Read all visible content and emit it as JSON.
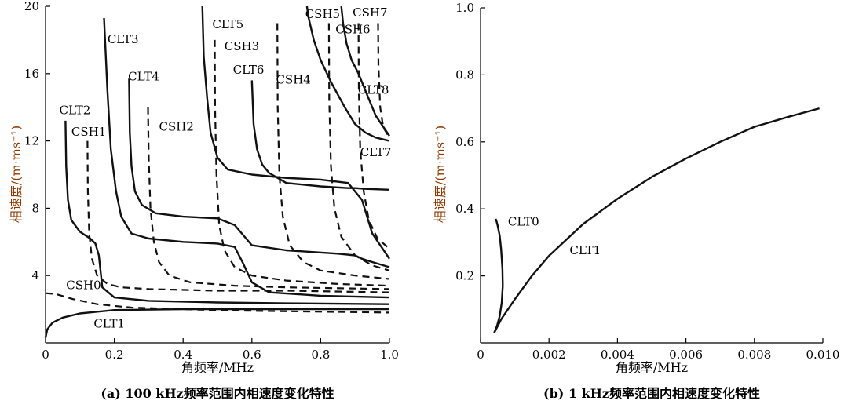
{
  "chart_data": [
    {
      "type": "line",
      "caption": "(a) 100 kHz频率范围内相速度变化特性",
      "xlabel": "角频率/MHz",
      "ylabel": "相速度/(m·ms⁻¹)",
      "xlim": [
        0,
        1.0
      ],
      "ylim": [
        0,
        20
      ],
      "xticks": [
        "0",
        "0.2",
        "0.4",
        "0.6",
        "0.8",
        "1.0"
      ],
      "yticks": [
        "4",
        "8",
        "12",
        "16",
        "20"
      ],
      "series": [
        {
          "name": "CLT1",
          "style": "solid",
          "label_at": [
            0.14,
            0.9
          ],
          "x": [
            0.0,
            0.005,
            0.02,
            0.05,
            0.1,
            0.2,
            0.4,
            0.7,
            1.0
          ],
          "y": [
            0.3,
            0.8,
            1.2,
            1.5,
            1.75,
            1.95,
            2.0,
            2.0,
            2.0
          ]
        },
        {
          "name": "CSH0",
          "style": "dashed",
          "label_at": [
            0.06,
            3.2
          ],
          "x": [
            0.0,
            0.03,
            0.08,
            0.15,
            0.25,
            0.4,
            0.6,
            0.8,
            1.0
          ],
          "y": [
            2.95,
            2.9,
            2.6,
            2.3,
            2.1,
            2.0,
            1.9,
            1.85,
            1.8
          ]
        },
        {
          "name": "CLT2",
          "style": "solid",
          "label_at": [
            0.04,
            13.6
          ],
          "x": [
            0.058,
            0.06,
            0.065,
            0.075,
            0.1,
            0.13,
            0.145,
            0.155,
            0.165,
            0.2,
            0.3,
            0.5,
            0.7,
            1.0
          ],
          "y": [
            13.2,
            10.5,
            8.5,
            7.3,
            6.6,
            6.2,
            5.9,
            5.2,
            3.3,
            2.7,
            2.5,
            2.4,
            2.35,
            2.3
          ]
        },
        {
          "name": "CSH1",
          "style": "dashed",
          "label_at": [
            0.075,
            12.3
          ],
          "x": [
            0.122,
            0.123,
            0.127,
            0.135,
            0.15,
            0.18,
            0.22,
            0.3,
            0.5,
            0.7,
            1.0
          ],
          "y": [
            12.0,
            9.0,
            6.5,
            5.0,
            4.0,
            3.5,
            3.3,
            3.2,
            3.1,
            3.1,
            3.0
          ]
        },
        {
          "name": "CLT3",
          "style": "solid",
          "label_at": [
            0.18,
            17.8
          ],
          "x": [
            0.17,
            0.18,
            0.19,
            0.205,
            0.22,
            0.25,
            0.3,
            0.4,
            0.5,
            0.55,
            0.575,
            0.6,
            0.65,
            0.8,
            1.0
          ],
          "y": [
            19.3,
            15.0,
            11.5,
            9.0,
            7.5,
            6.5,
            6.2,
            6.0,
            5.9,
            5.7,
            4.7,
            3.6,
            3.0,
            2.8,
            2.7
          ]
        },
        {
          "name": "CLT4",
          "style": "solid",
          "label_at": [
            0.24,
            15.6
          ],
          "x": [
            0.243,
            0.245,
            0.25,
            0.26,
            0.28,
            0.32,
            0.4,
            0.5,
            0.55,
            0.6,
            0.7,
            0.85,
            0.9,
            0.92,
            0.95,
            1.0
          ],
          "y": [
            15.7,
            12.5,
            10.5,
            9.0,
            8.2,
            7.7,
            7.5,
            7.4,
            7.0,
            5.8,
            5.5,
            5.3,
            5.2,
            5.0,
            4.8,
            4.5
          ]
        },
        {
          "name": "CSH2",
          "style": "dashed",
          "label_at": [
            0.33,
            12.6
          ],
          "x": [
            0.298,
            0.3,
            0.305,
            0.315,
            0.33,
            0.36,
            0.42,
            0.55,
            0.7,
            1.0
          ],
          "y": [
            14.0,
            11.0,
            8.0,
            6.0,
            4.8,
            4.0,
            3.6,
            3.4,
            3.3,
            3.2
          ]
        },
        {
          "name": "CLT5",
          "style": "solid",
          "label_at": [
            0.485,
            18.7
          ],
          "x": [
            0.456,
            0.46,
            0.47,
            0.48,
            0.5,
            0.53,
            0.6,
            0.7,
            0.8,
            0.88,
            0.92,
            0.95,
            1.0
          ],
          "y": [
            20.0,
            17.0,
            14.5,
            12.5,
            11.0,
            10.3,
            10.0,
            9.8,
            9.7,
            9.5,
            8.5,
            6.5,
            5.0
          ]
        },
        {
          "name": "CSH3",
          "style": "dashed",
          "label_at": [
            0.52,
            17.4
          ],
          "x": [
            0.492,
            0.493,
            0.497,
            0.505,
            0.52,
            0.55,
            0.6,
            0.7,
            0.85,
            1.0
          ],
          "y": [
            18.0,
            14.0,
            10.0,
            7.0,
            5.5,
            4.5,
            4.0,
            3.7,
            3.5,
            3.4
          ]
        },
        {
          "name": "CLT6",
          "style": "solid",
          "label_at": [
            0.545,
            16.0
          ],
          "x": [
            0.6,
            0.605,
            0.615,
            0.63,
            0.65,
            0.7,
            0.8,
            0.88,
            0.9,
            0.93,
            1.0
          ],
          "y": [
            15.6,
            13.0,
            11.5,
            10.6,
            10.1,
            9.5,
            9.3,
            9.2,
            9.2,
            9.15,
            9.1
          ]
        },
        {
          "name": "CSH4",
          "style": "dashed",
          "label_at": [
            0.67,
            15.4
          ],
          "x": [
            0.674,
            0.675,
            0.68,
            0.69,
            0.71,
            0.75,
            0.8,
            0.9,
            1.0
          ],
          "y": [
            19.0,
            14.0,
            10.0,
            7.5,
            5.8,
            4.8,
            4.3,
            4.0,
            3.8
          ]
        },
        {
          "name": "CSH5",
          "style": "dashed",
          "label_at": [
            0.755,
            19.3
          ],
          "x": [
            0.824,
            0.825,
            0.83,
            0.84,
            0.86,
            0.9,
            0.95,
            1.0
          ],
          "y": [
            19.0,
            14.5,
            10.5,
            8.0,
            6.3,
            5.2,
            4.6,
            4.3
          ]
        },
        {
          "name": "CSH6",
          "style": "dashed",
          "label_at": [
            0.843,
            18.4
          ],
          "x": [
            0.91,
            0.911,
            0.915,
            0.925,
            0.94,
            0.965,
            1.0
          ],
          "y": [
            19.0,
            15.0,
            11.5,
            9.0,
            7.3,
            6.2,
            5.6
          ]
        },
        {
          "name": "CSH7",
          "style": "dashed",
          "label_at": [
            0.893,
            19.4
          ],
          "x": [
            0.967,
            0.968,
            0.973,
            0.982,
            1.0
          ],
          "y": [
            19.0,
            16.5,
            14.0,
            12.8,
            12.2
          ]
        },
        {
          "name": "CLT7",
          "style": "solid",
          "label_at": [
            0.915,
            11.1
          ],
          "x": [
            0.76,
            0.765,
            0.78,
            0.8,
            0.83,
            0.87,
            0.9,
            0.93,
            0.96,
            1.0
          ],
          "y": [
            20.0,
            19.3,
            18.0,
            16.8,
            15.5,
            14.0,
            13.0,
            12.5,
            12.2,
            12.0
          ]
        },
        {
          "name": "CLT8",
          "style": "solid",
          "label_at": [
            0.908,
            14.8
          ],
          "x": [
            0.86,
            0.865,
            0.875,
            0.89,
            0.91,
            0.93,
            0.96,
            1.0
          ],
          "y": [
            20.0,
            19.0,
            17.8,
            16.8,
            16.0,
            15.0,
            13.5,
            12.3
          ]
        }
      ]
    },
    {
      "type": "line",
      "caption": "(b) 1 kHz频率范围内相速度变化特性",
      "xlabel": "角频率/MHz",
      "ylabel": "相速度/(m·ms⁻¹)",
      "xlim": [
        0,
        0.01
      ],
      "ylim": [
        0,
        1.0
      ],
      "xticks": [
        "0",
        "0.002",
        "0.004",
        "0.006",
        "0.008",
        "0.010"
      ],
      "yticks": [
        "0.2",
        "0.4",
        "0.6",
        "0.8",
        "1.0"
      ],
      "series": [
        {
          "name": "CLT0",
          "style": "solid",
          "label_at": [
            0.0008,
            0.35
          ],
          "x": [
            0.00044,
            0.00046,
            0.0005,
            0.00056,
            0.0006,
            0.00064,
            0.00065,
            0.00062,
            0.00056,
            0.00048,
            0.0004
          ],
          "y": [
            0.37,
            0.365,
            0.35,
            0.32,
            0.28,
            0.22,
            0.17,
            0.12,
            0.08,
            0.05,
            0.03
          ]
        },
        {
          "name": "CLT1",
          "style": "solid",
          "label_at": [
            0.0026,
            0.265
          ],
          "x": [
            0.0004,
            0.0006,
            0.001,
            0.0015,
            0.002,
            0.003,
            0.004,
            0.005,
            0.006,
            0.007,
            0.008,
            0.009,
            0.0099
          ],
          "y": [
            0.03,
            0.07,
            0.13,
            0.2,
            0.26,
            0.355,
            0.43,
            0.495,
            0.55,
            0.6,
            0.645,
            0.675,
            0.7
          ]
        }
      ]
    }
  ]
}
